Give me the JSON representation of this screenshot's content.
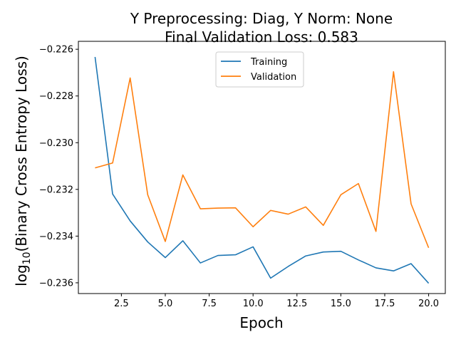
{
  "chart_data": {
    "type": "line",
    "title_line1": "Y Preprocessing: Diag, Y Norm: None",
    "title_line2": "Final Validation Loss: 0.583",
    "xlabel": "Epoch",
    "ylabel_main": "log",
    "ylabel_sub": "10",
    "ylabel_rest": "(Binary Cross Entropy Loss)",
    "xlim": [
      0.05,
      20.95
    ],
    "ylim": [
      -0.23646,
      -0.22566
    ],
    "xticks": [
      2.5,
      5.0,
      7.5,
      10.0,
      12.5,
      15.0,
      17.5,
      20.0
    ],
    "xtick_labels": [
      "2.5",
      "5.0",
      "7.5",
      "10.0",
      "12.5",
      "15.0",
      "17.5",
      "20.0"
    ],
    "yticks": [
      -0.226,
      -0.228,
      -0.23,
      -0.232,
      -0.234,
      -0.236
    ],
    "ytick_labels": [
      "−0.226",
      "−0.228",
      "−0.230",
      "−0.232",
      "−0.234",
      "−0.236"
    ],
    "grid": false,
    "legend_position": "upper-center",
    "x": [
      1,
      2,
      3,
      4,
      5,
      6,
      7,
      8,
      9,
      10,
      11,
      12,
      13,
      14,
      15,
      16,
      17,
      18,
      19,
      20
    ],
    "series": [
      {
        "name": "Training",
        "color": "#1f77b4",
        "values": [
          -0.22633,
          -0.2322,
          -0.23335,
          -0.23425,
          -0.23492,
          -0.2342,
          -0.23515,
          -0.23483,
          -0.2348,
          -0.23446,
          -0.2358,
          -0.2353,
          -0.23485,
          -0.23468,
          -0.23465,
          -0.23502,
          -0.23536,
          -0.23549,
          -0.23518,
          -0.23602
        ]
      },
      {
        "name": "Validation",
        "color": "#ff7f0e",
        "values": [
          -0.23108,
          -0.23087,
          -0.22723,
          -0.23223,
          -0.23423,
          -0.23138,
          -0.23283,
          -0.2328,
          -0.23279,
          -0.2336,
          -0.2329,
          -0.23306,
          -0.23275,
          -0.23354,
          -0.23223,
          -0.23175,
          -0.2338,
          -0.22696,
          -0.23262,
          -0.2345
        ]
      }
    ]
  }
}
